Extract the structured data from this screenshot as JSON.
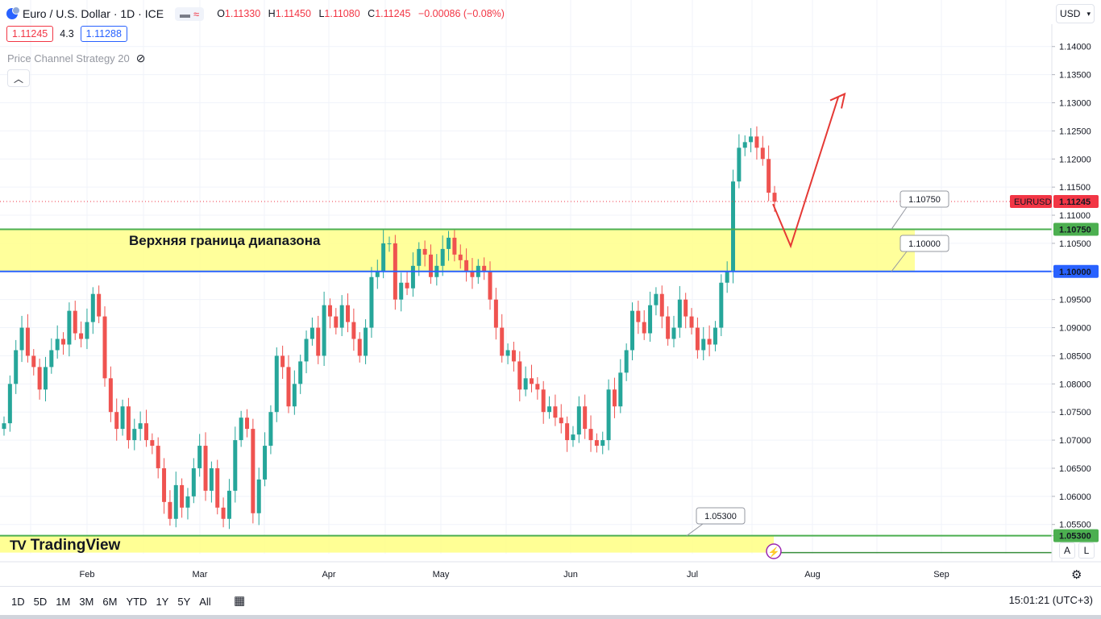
{
  "header": {
    "title": "Euro / U.S. Dollar · 1D · ICE",
    "ohlc": [
      {
        "k": "O",
        "v": "1.11330"
      },
      {
        "k": "H",
        "v": "1.11450"
      },
      {
        "k": "L",
        "v": "1.11080"
      },
      {
        "k": "C",
        "v": "1.11245"
      }
    ],
    "change": "−0.00086 (−0.08%)",
    "sell_price": "1.11245",
    "spread": "4.3",
    "buy_price": "1.11288",
    "indicator": "Price Channel Strategy 20",
    "currency": "USD"
  },
  "zones": {
    "upper_label": "Верхняя граница диапазона"
  },
  "chart_data": {
    "type": "candlestick",
    "symbol": "EURUSD",
    "last_price": "1.11245",
    "ylim": [
      1.0498,
      1.1424
    ],
    "yticks": [
      "1.14000",
      "1.13500",
      "1.13000",
      "1.12500",
      "1.12000",
      "1.11500",
      "1.11000",
      "1.10500",
      "1.10000",
      "1.09500",
      "1.09000",
      "1.08500",
      "1.08000",
      "1.07500",
      "1.07000",
      "1.06500",
      "1.06000",
      "1.05500",
      "1.05300"
    ],
    "xticks": [
      "Feb",
      "Mar",
      "Apr",
      "May",
      "Jun",
      "Jul",
      "Aug",
      "Sep"
    ],
    "levels": [
      {
        "label": "1.10750",
        "value": 1.1075,
        "color": "#4caf50"
      },
      {
        "label": "1.10000",
        "value": 1.1,
        "color": "#2962ff"
      },
      {
        "label": "1.05300",
        "value": 1.053,
        "color": "#4caf50"
      }
    ],
    "zone_upper": [
      1.1,
      1.1075
    ],
    "zone_lower": [
      1.05,
      1.053
    ],
    "forecast": [
      1.112,
      1.1045,
      1.131
    ],
    "closes": [
      1.073,
      1.08,
      1.086,
      1.09,
      1.085,
      1.083,
      1.079,
      1.083,
      1.086,
      1.088,
      1.087,
      1.093,
      1.089,
      1.088,
      1.091,
      1.096,
      1.092,
      1.081,
      1.075,
      1.072,
      1.076,
      1.07,
      1.072,
      1.073,
      1.07,
      1.069,
      1.065,
      1.059,
      1.056,
      1.062,
      1.058,
      1.06,
      1.065,
      1.069,
      1.061,
      1.065,
      1.058,
      1.056,
      1.061,
      1.07,
      1.074,
      1.072,
      1.057,
      1.063,
      1.069,
      1.075,
      1.085,
      1.083,
      1.076,
      1.08,
      1.084,
      1.088,
      1.09,
      1.085,
      1.094,
      1.092,
      1.09,
      1.094,
      1.091,
      1.088,
      1.085,
      1.09,
      1.099,
      1.1,
      1.105,
      1.105,
      1.095,
      1.098,
      1.097,
      1.101,
      1.104,
      1.103,
      1.099,
      1.101,
      1.104,
      1.106,
      1.103,
      1.102,
      1.1,
      1.099,
      1.101,
      1.1,
      1.095,
      1.09,
      1.085,
      1.086,
      1.084,
      1.079,
      1.081,
      1.08,
      1.079,
      1.075,
      1.076,
      1.074,
      1.073,
      1.07,
      1.071,
      1.076,
      1.072,
      1.07,
      1.069,
      1.07,
      1.079,
      1.076,
      1.082,
      1.086,
      1.093,
      1.091,
      1.089,
      1.094,
      1.096,
      1.092,
      1.088,
      1.09,
      1.095,
      1.092,
      1.09,
      1.086,
      1.088,
      1.087,
      1.09,
      1.098,
      1.1,
      1.116,
      1.122,
      1.123,
      1.124,
      1.122,
      1.12,
      1.114,
      1.1124
    ]
  },
  "bottom": {
    "timeframes": [
      "1D",
      "5D",
      "1M",
      "3M",
      "6M",
      "YTD",
      "1Y",
      "5Y",
      "All"
    ],
    "clock": "15:01:21 (UTC+3)",
    "logo": "TradingView",
    "btn_a": "A",
    "btn_l": "L"
  }
}
